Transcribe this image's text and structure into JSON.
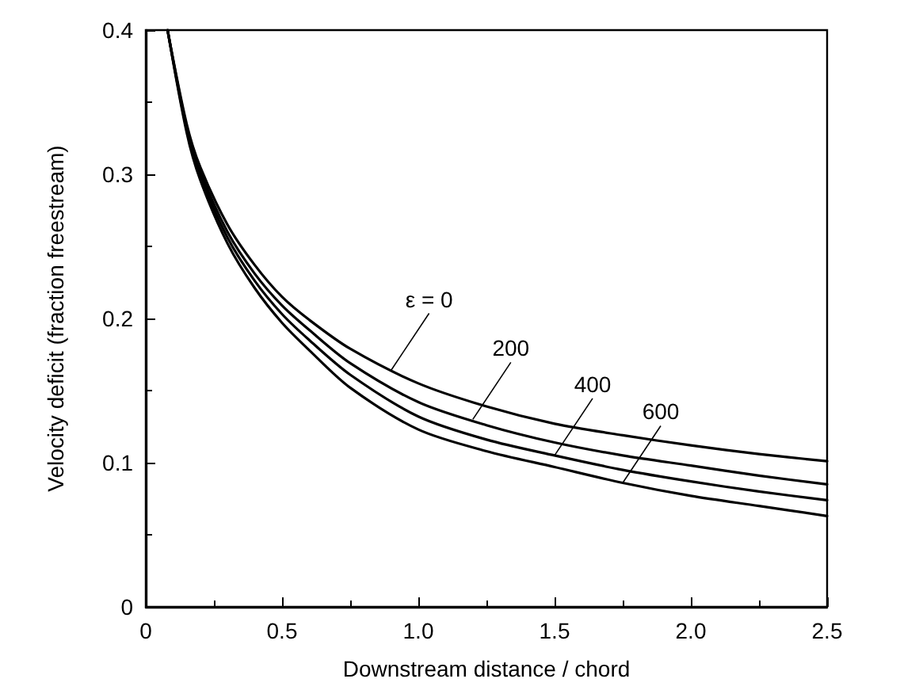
{
  "chart_data": {
    "type": "line",
    "xlabel": "Downstream distance / chord",
    "ylabel": "Velocity deficit (fraction freestream)",
    "x": [
      0.08,
      0.15,
      0.2,
      0.3,
      0.4,
      0.5,
      0.6,
      0.75,
      1.0,
      1.25,
      1.5,
      1.75,
      2.0,
      2.25,
      2.5
    ],
    "series": [
      {
        "color": "#000000",
        "values": [
          0.4,
          0.335,
          0.305,
          0.265,
          0.237,
          0.215,
          0.199,
          0.179,
          0.155,
          0.139,
          0.127,
          0.119,
          0.112,
          0.106,
          0.101
        ]
      },
      {
        "color": "#000000",
        "values": [
          0.4,
          0.333,
          0.302,
          0.26,
          0.231,
          0.209,
          0.192,
          0.169,
          0.142,
          0.126,
          0.114,
          0.105,
          0.098,
          0.091,
          0.085
        ]
      },
      {
        "color": "#000000",
        "values": [
          0.4,
          0.331,
          0.299,
          0.256,
          0.226,
          0.203,
          0.185,
          0.161,
          0.132,
          0.116,
          0.105,
          0.095,
          0.087,
          0.08,
          0.074
        ]
      },
      {
        "color": "#000000",
        "values": [
          0.4,
          0.329,
          0.296,
          0.252,
          0.221,
          0.197,
          0.178,
          0.152,
          0.123,
          0.108,
          0.097,
          0.086,
          0.077,
          0.07,
          0.063
        ]
      }
    ],
    "annotations": [
      {
        "text": "ε = 0",
        "x": 0.9,
        "y": 0.164
      },
      {
        "text": "200",
        "x": 1.2,
        "y": 0.13
      },
      {
        "text": "400",
        "x": 1.5,
        "y": 0.105
      },
      {
        "text": "600",
        "x": 1.75,
        "y": 0.086
      }
    ],
    "xlim": [
      0,
      2.5
    ],
    "xticks": [
      0,
      0.5,
      {
        "value": 1,
        "label": "1.0"
      },
      1.5,
      {
        "value": 2,
        "label": "2.0"
      },
      2.5
    ],
    "ylim": [
      0,
      0.4
    ],
    "yticks": [
      0,
      0.1,
      0.2,
      0.3,
      0.4
    ],
    "grid": false,
    "marker": "none",
    "line_style": "solid"
  }
}
